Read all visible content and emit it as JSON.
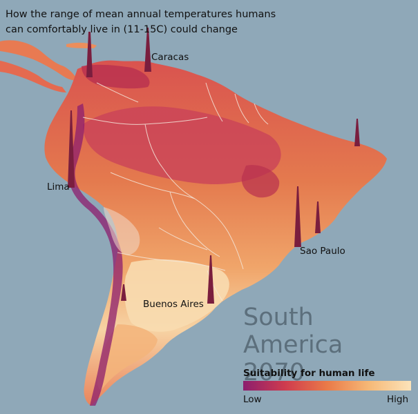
{
  "title": "How the range of mean annual temperatures humans can comfortably live in (11-15C) could change",
  "cities": {
    "caracas": "Caracas",
    "lima": "Lima",
    "sao_paulo": "Sao Paulo",
    "buenos_aires": "Buenos Aires"
  },
  "region": {
    "name": "South America",
    "year": "2070"
  },
  "legend": {
    "title": "Suitability for human life",
    "low": "Low",
    "high": "High",
    "colors": [
      "#8c1e6e",
      "#cf3b4e",
      "#ea7a48",
      "#f6b977",
      "#fbe3ba"
    ]
  },
  "colors": {
    "ocean": "#8fa8b8",
    "land_mid": "#e06a4a",
    "land_interior": "#c8405a",
    "land_light": "#f3b47a",
    "land_pale": "#f8dcb0",
    "mountains": "#8c1e6e",
    "borders": "#f4e8dc"
  }
}
